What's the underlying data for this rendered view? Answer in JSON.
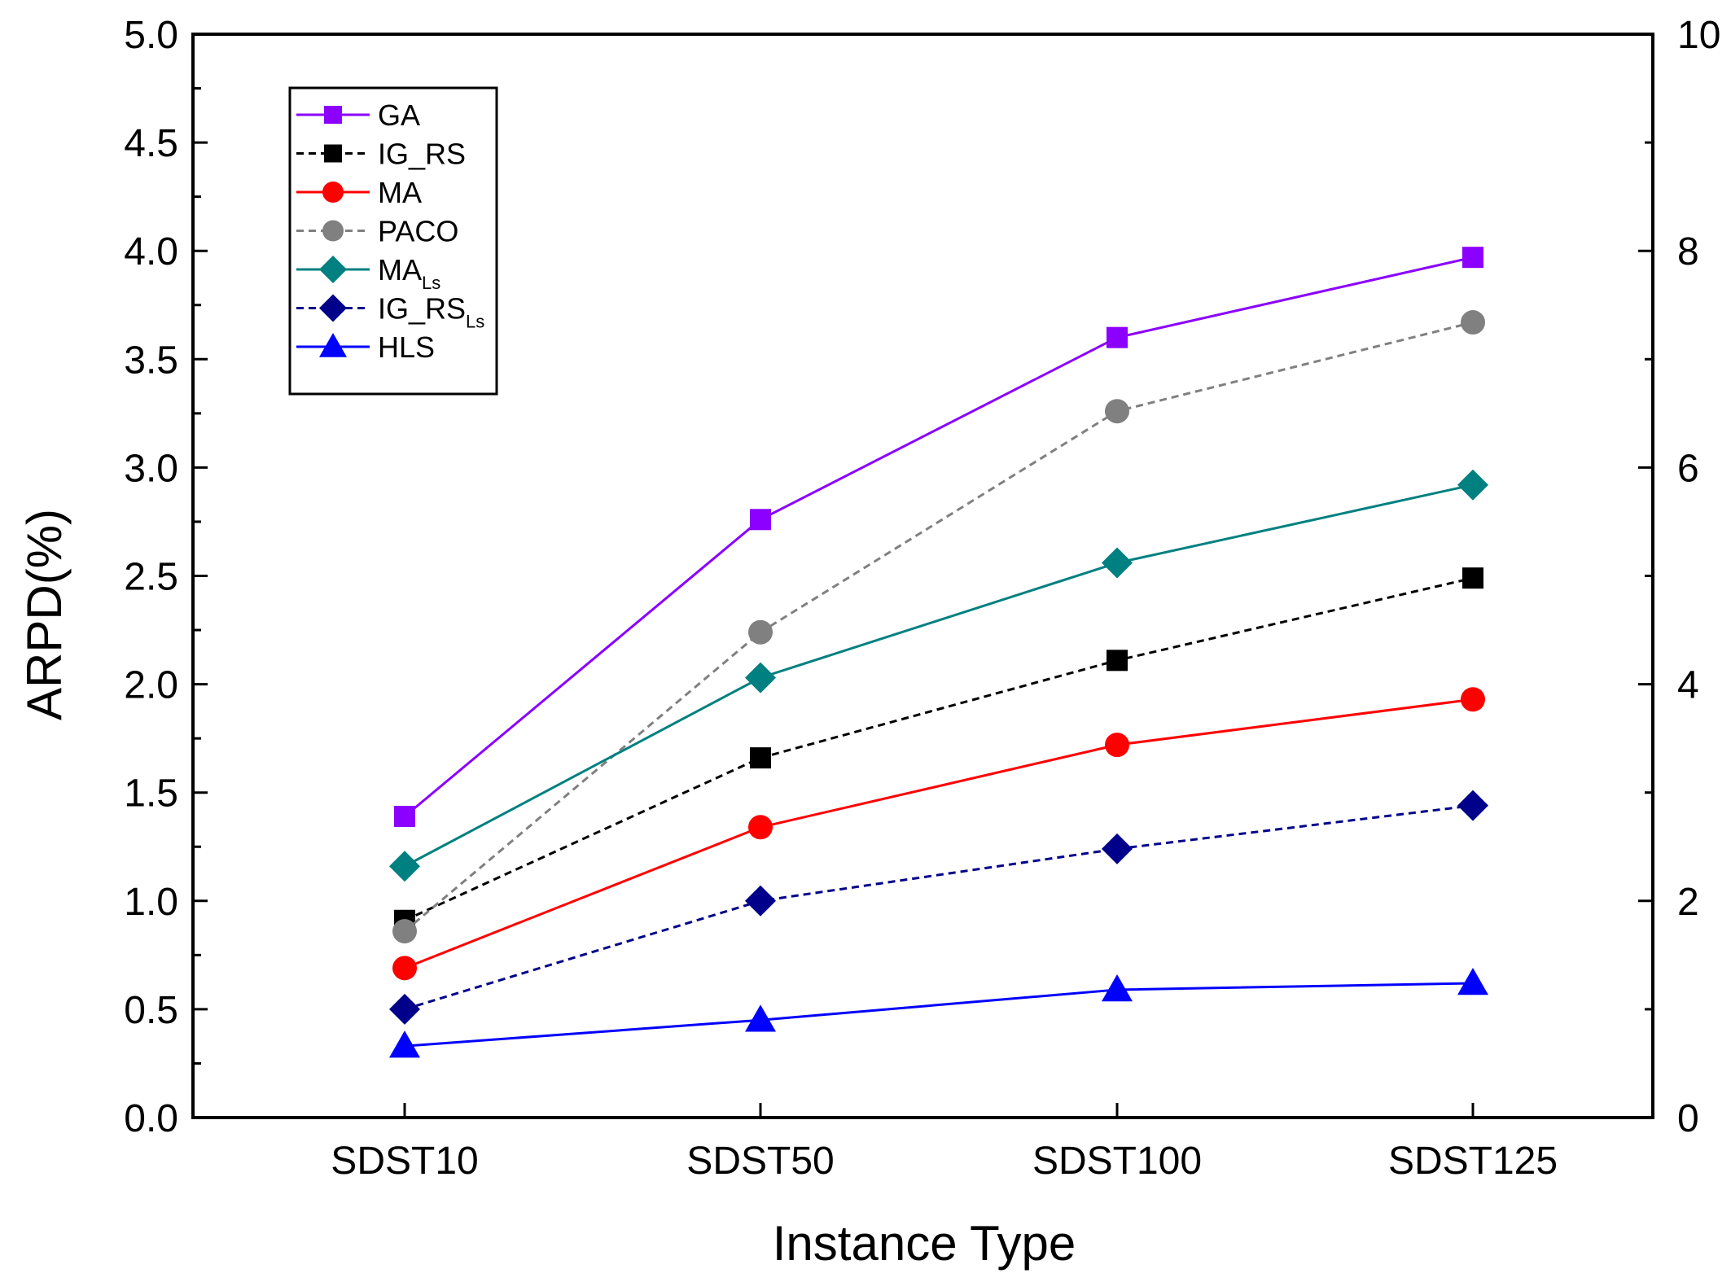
{
  "chart_data": {
    "type": "line",
    "categories": [
      "SDST10",
      "SDST50",
      "SDST100",
      "SDST125"
    ],
    "xlabel": "Instance Type",
    "ylabel": "ARPD(%)",
    "ylim": [
      0,
      5
    ],
    "yticks": [
      "0.0",
      "0.5",
      "1.0",
      "1.5",
      "2.0",
      "2.5",
      "3.0",
      "3.5",
      "4.0",
      "4.5",
      "5.0"
    ],
    "y2lim": [
      0,
      10
    ],
    "y2ticks": [
      "0",
      "2",
      "4",
      "6",
      "8",
      "10"
    ],
    "legend_position": "top-left",
    "series": [
      {
        "name": "GA",
        "sub": "",
        "values": [
          1.39,
          2.76,
          3.6,
          3.97
        ],
        "color": "#8b00ff",
        "dash": "solid",
        "marker": "square"
      },
      {
        "name": "IG_RS",
        "sub": "",
        "values": [
          0.91,
          1.66,
          2.11,
          2.49
        ],
        "color": "#000000",
        "dash": "dashed",
        "marker": "square"
      },
      {
        "name": "MA",
        "sub": "",
        "values": [
          0.69,
          1.34,
          1.72,
          1.93
        ],
        "color": "#ff0000",
        "dash": "solid",
        "marker": "circle"
      },
      {
        "name": "PACO",
        "sub": "",
        "values": [
          0.86,
          2.24,
          3.26,
          3.67
        ],
        "color": "#808080",
        "dash": "dashed",
        "marker": "circle"
      },
      {
        "name": "MA",
        "sub": "Ls",
        "values": [
          1.16,
          2.03,
          2.56,
          2.92
        ],
        "color": "#008080",
        "dash": "solid",
        "marker": "diamond"
      },
      {
        "name": "IG_RS",
        "sub": "Ls",
        "values": [
          0.5,
          1.0,
          1.24,
          1.44
        ],
        "color": "#00008b",
        "dash": "dashed",
        "marker": "diamond"
      },
      {
        "name": "HLS",
        "sub": "",
        "values": [
          0.33,
          0.45,
          0.59,
          0.62
        ],
        "color": "#0000ff",
        "dash": "solid",
        "marker": "triangle"
      }
    ]
  }
}
